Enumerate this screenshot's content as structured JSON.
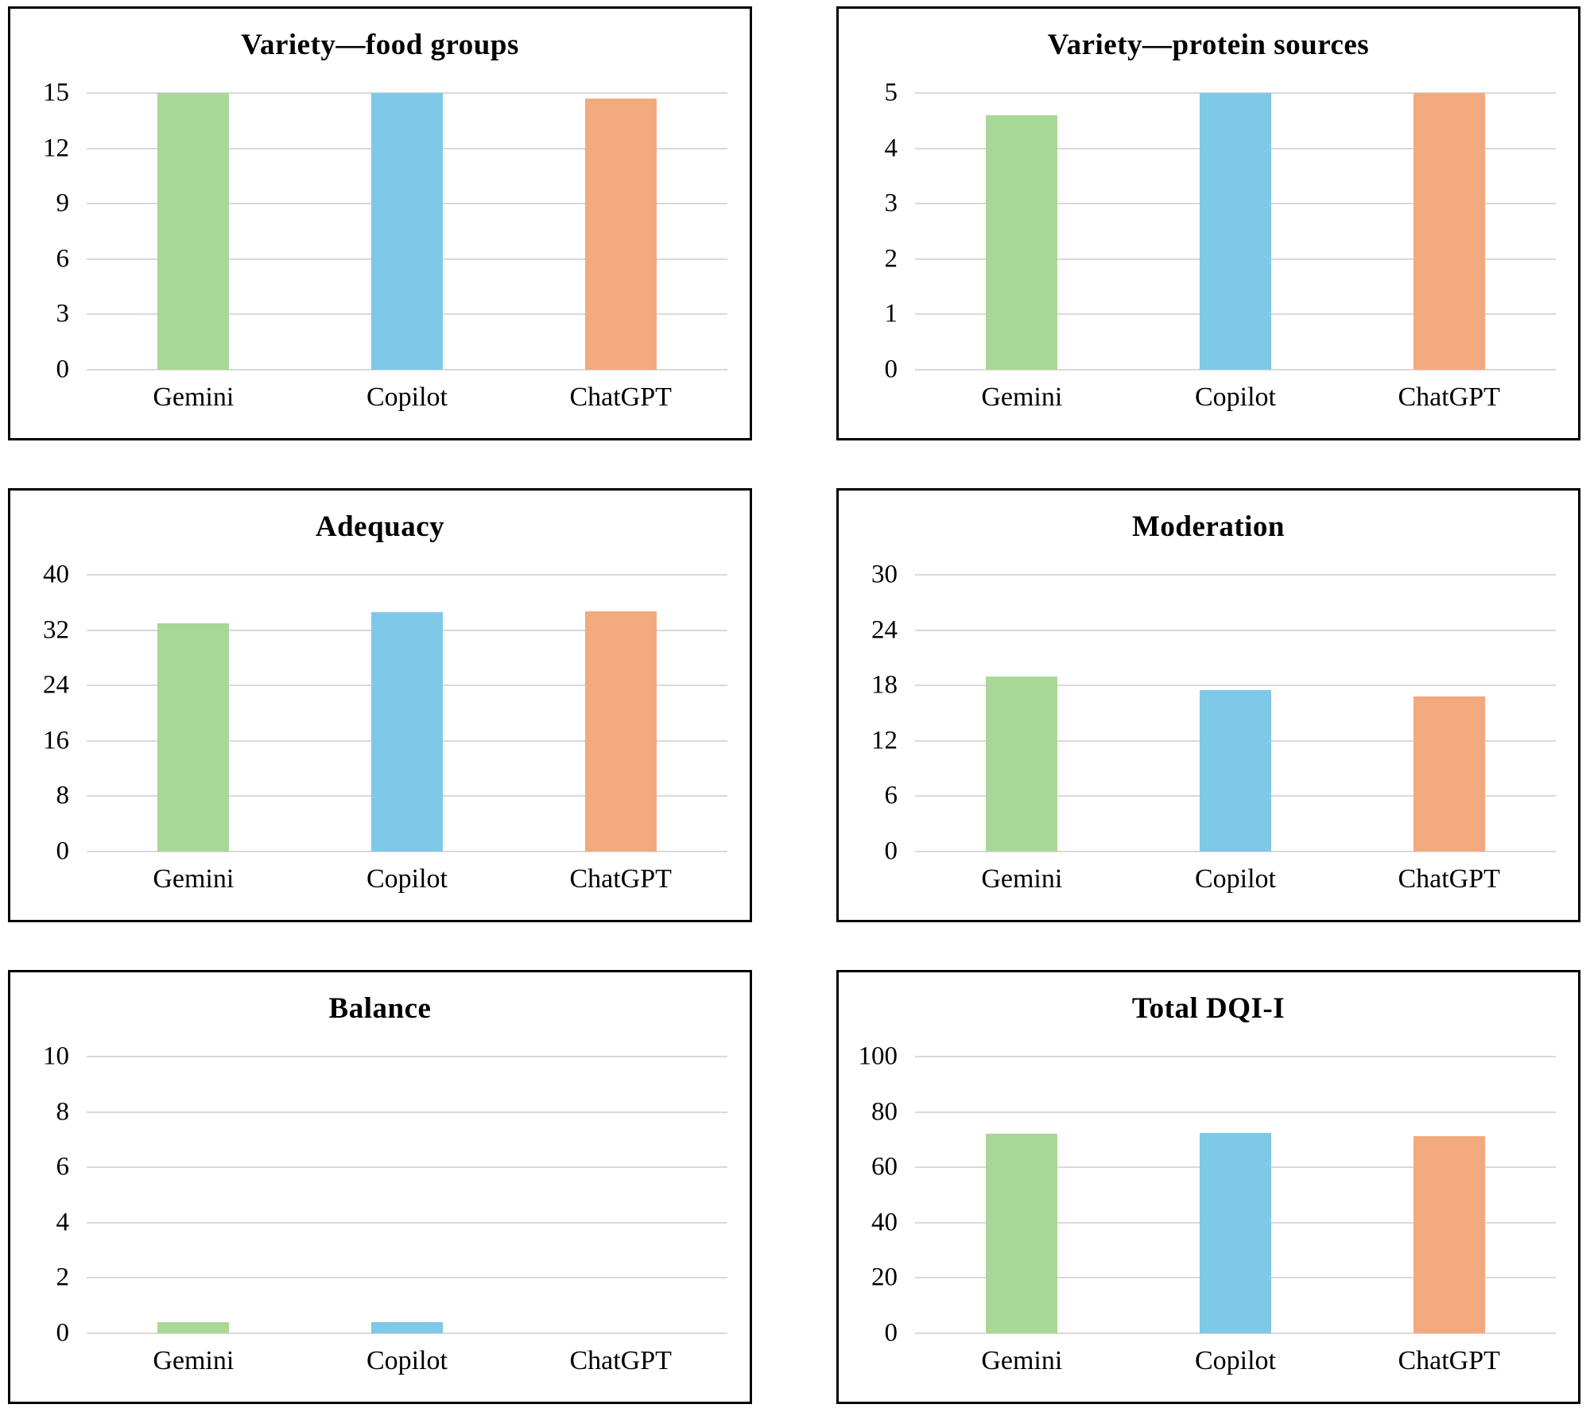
{
  "figure": {
    "background_color": "#ffffff",
    "panel_border_color": "#000000",
    "gridline_color": "#d9d9d9",
    "text_color": "#000000"
  },
  "categories": [
    "Gemini",
    "Copilot",
    "ChatGPT"
  ],
  "bar_colors": [
    "#a8d896",
    "#7ec8e8",
    "#f2a97e"
  ],
  "chart_data": [
    {
      "type": "bar",
      "title": "Variety—food groups",
      "categories": [
        "Gemini",
        "Copilot",
        "ChatGPT"
      ],
      "values": [
        15,
        15,
        14.7
      ],
      "bar_colors": [
        "#a8d896",
        "#7ec8e8",
        "#f2a97e"
      ],
      "ylim": [
        0,
        15
      ],
      "yticks": [
        0,
        3,
        6,
        9,
        12,
        15
      ],
      "grid": true,
      "legend": false
    },
    {
      "type": "bar",
      "title": "Variety—protein sources",
      "categories": [
        "Gemini",
        "Copilot",
        "ChatGPT"
      ],
      "values": [
        4.6,
        5,
        5
      ],
      "bar_colors": [
        "#a8d896",
        "#7ec8e8",
        "#f2a97e"
      ],
      "ylim": [
        0,
        5
      ],
      "yticks": [
        0,
        1,
        2,
        3,
        4,
        5
      ],
      "grid": true,
      "legend": false
    },
    {
      "type": "bar",
      "title": "Adequacy",
      "categories": [
        "Gemini",
        "Copilot",
        "ChatGPT"
      ],
      "values": [
        33,
        34.6,
        34.7
      ],
      "bar_colors": [
        "#a8d896",
        "#7ec8e8",
        "#f2a97e"
      ],
      "ylim": [
        0,
        40
      ],
      "yticks": [
        0,
        8,
        16,
        24,
        32,
        40
      ],
      "grid": true,
      "legend": false
    },
    {
      "type": "bar",
      "title": "Moderation",
      "categories": [
        "Gemini",
        "Copilot",
        "ChatGPT"
      ],
      "values": [
        19,
        17.5,
        16.8
      ],
      "bar_colors": [
        "#a8d896",
        "#7ec8e8",
        "#f2a97e"
      ],
      "ylim": [
        0,
        30
      ],
      "yticks": [
        0,
        6,
        12,
        18,
        24,
        30
      ],
      "grid": true,
      "legend": false
    },
    {
      "type": "bar",
      "title": "Balance",
      "categories": [
        "Gemini",
        "Copilot",
        "ChatGPT"
      ],
      "values": [
        0.4,
        0.4,
        0
      ],
      "bar_colors": [
        "#a8d896",
        "#7ec8e8",
        "#f2a97e"
      ],
      "ylim": [
        0,
        10
      ],
      "yticks": [
        0,
        2,
        4,
        6,
        8,
        10
      ],
      "grid": true,
      "legend": false
    },
    {
      "type": "bar",
      "title": "Total DQI-I",
      "categories": [
        "Gemini",
        "Copilot",
        "ChatGPT"
      ],
      "values": [
        72,
        72.5,
        71.2
      ],
      "bar_colors": [
        "#a8d896",
        "#7ec8e8",
        "#f2a97e"
      ],
      "ylim": [
        0,
        100
      ],
      "yticks": [
        0,
        20,
        40,
        60,
        80,
        100
      ],
      "grid": true,
      "legend": false
    }
  ]
}
